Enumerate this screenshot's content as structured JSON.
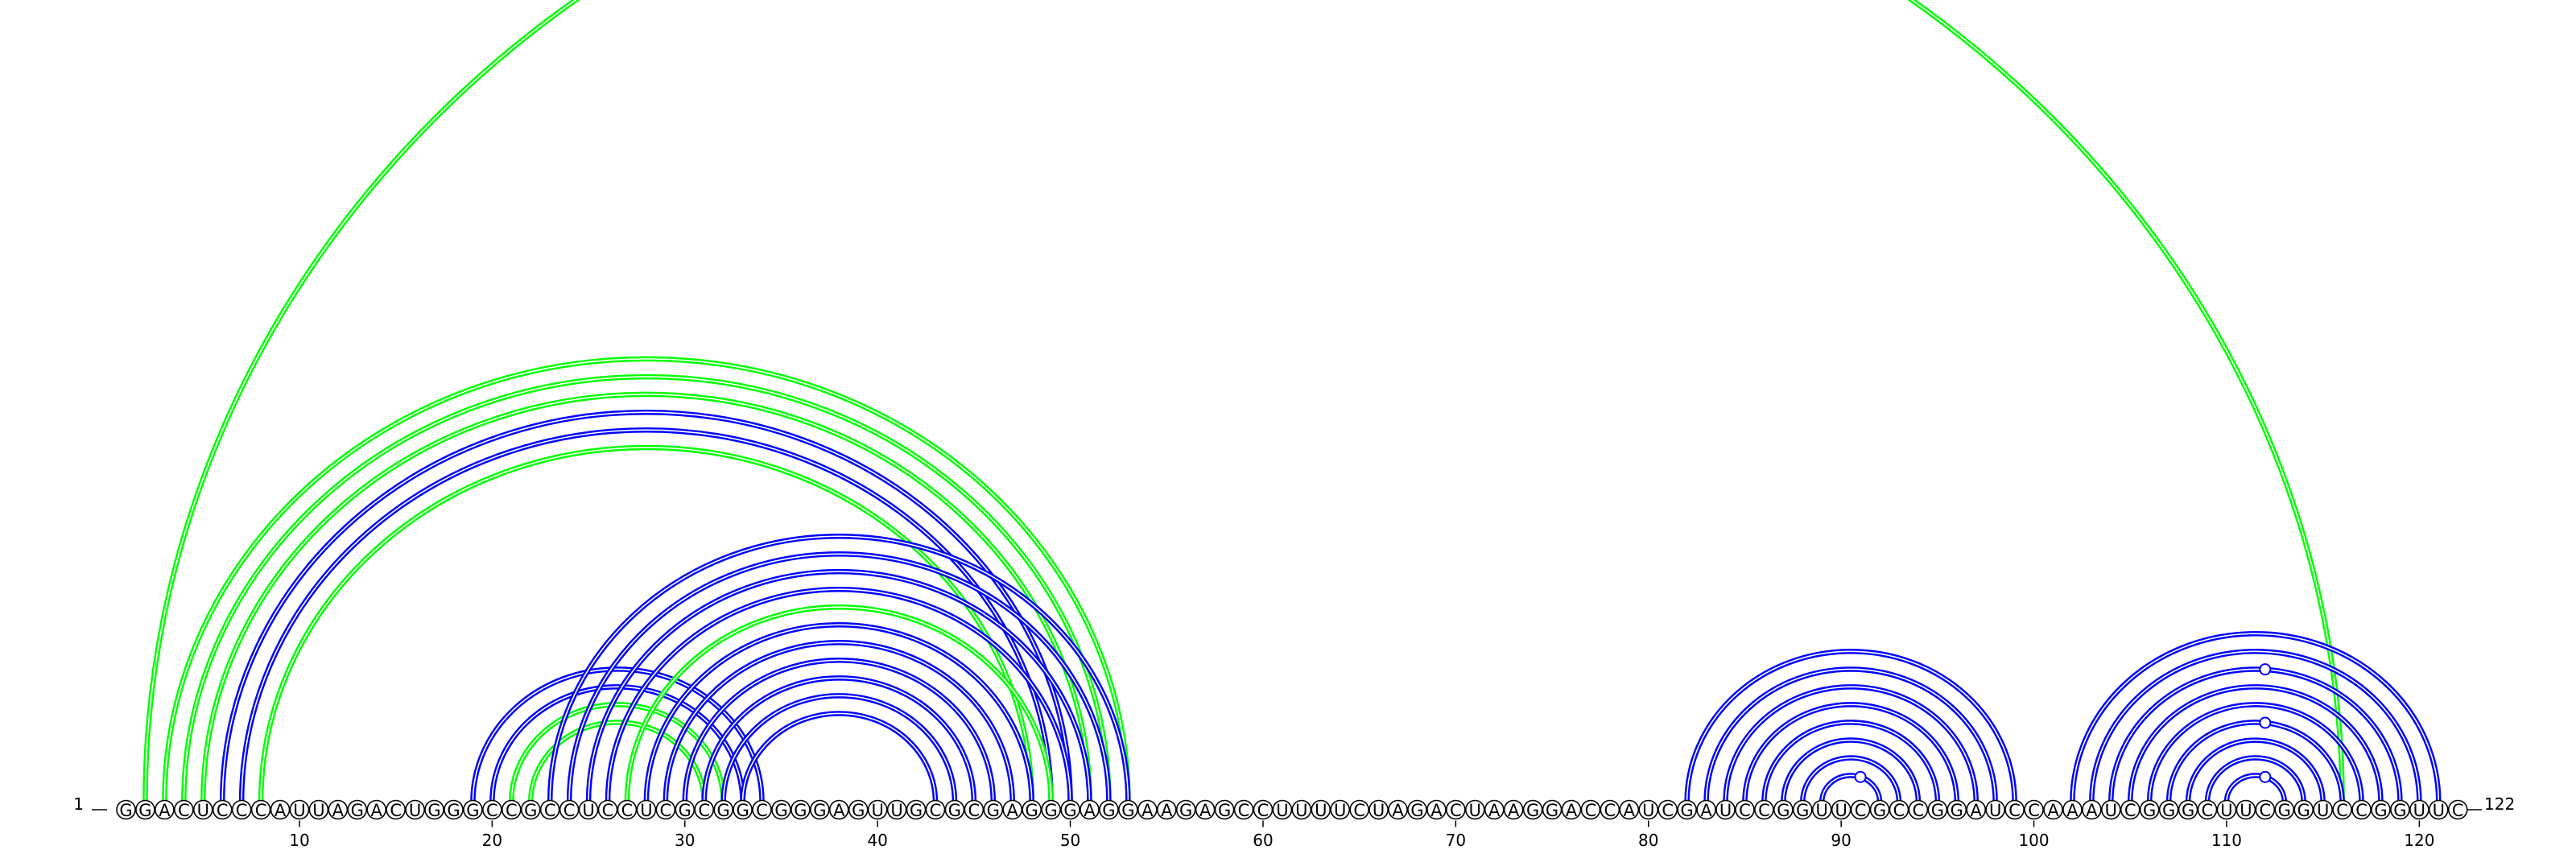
{
  "sequence": "GGACUCCCAUUAGACUGGGCCGCCUCCUCGCGGCGGGAGUUGCGCGAGGGAGGAAGAGCCUUUUCUAGACUAAGGACCAUCGAUCCGGUUCGCCGGAUCCAAAUCGGGCUUCGGUCCGGUUC",
  "start_label": "1",
  "end_label": "122",
  "ticks": [
    10,
    20,
    30,
    40,
    50,
    60,
    70,
    80,
    90,
    100,
    110,
    120
  ],
  "colors": {
    "blue": "#0000ff",
    "green": "#00ff00"
  },
  "pairs": [
    {
      "i": 2,
      "j": 116,
      "color": "green"
    },
    {
      "i": 3,
      "j": 53,
      "color": "green"
    },
    {
      "i": 4,
      "j": 52,
      "color": "green"
    },
    {
      "i": 5,
      "j": 51,
      "color": "green"
    },
    {
      "i": 6,
      "j": 50,
      "color": "blue"
    },
    {
      "i": 7,
      "j": 49,
      "color": "blue"
    },
    {
      "i": 8,
      "j": 48,
      "color": "green"
    },
    {
      "i": 19,
      "j": 34,
      "color": "blue"
    },
    {
      "i": 20,
      "j": 33,
      "color": "blue"
    },
    {
      "i": 21,
      "j": 32,
      "color": "green"
    },
    {
      "i": 22,
      "j": 31,
      "color": "green"
    },
    {
      "i": 23,
      "j": 53,
      "color": "blue"
    },
    {
      "i": 24,
      "j": 52,
      "color": "blue"
    },
    {
      "i": 25,
      "j": 51,
      "color": "blue"
    },
    {
      "i": 26,
      "j": 50,
      "color": "blue"
    },
    {
      "i": 27,
      "j": 49,
      "color": "green"
    },
    {
      "i": 28,
      "j": 48,
      "color": "blue"
    },
    {
      "i": 29,
      "j": 47,
      "color": "blue"
    },
    {
      "i": 30,
      "j": 46,
      "color": "blue"
    },
    {
      "i": 31,
      "j": 45,
      "color": "blue"
    },
    {
      "i": 32,
      "j": 44,
      "color": "blue"
    },
    {
      "i": 33,
      "j": 43,
      "color": "blue"
    },
    {
      "i": 82,
      "j": 99,
      "color": "blue"
    },
    {
      "i": 83,
      "j": 98,
      "color": "blue"
    },
    {
      "i": 84,
      "j": 97,
      "color": "blue"
    },
    {
      "i": 85,
      "j": 96,
      "color": "blue"
    },
    {
      "i": 86,
      "j": 95,
      "color": "blue"
    },
    {
      "i": 87,
      "j": 94,
      "color": "blue"
    },
    {
      "i": 88,
      "j": 93,
      "color": "blue"
    },
    {
      "i": 89,
      "j": 92,
      "color": "blue"
    },
    {
      "i": 102,
      "j": 121,
      "color": "blue"
    },
    {
      "i": 103,
      "j": 120,
      "color": "blue"
    },
    {
      "i": 104,
      "j": 119,
      "color": "blue"
    },
    {
      "i": 105,
      "j": 118,
      "color": "blue"
    },
    {
      "i": 106,
      "j": 117,
      "color": "blue"
    },
    {
      "i": 107,
      "j": 116,
      "color": "blue"
    },
    {
      "i": 108,
      "j": 115,
      "color": "blue"
    },
    {
      "i": 109,
      "j": 114,
      "color": "blue"
    },
    {
      "i": 110,
      "j": 113,
      "color": "blue"
    }
  ],
  "markers": [
    {
      "pos": 28,
      "color": "green",
      "filled": true
    },
    {
      "pos": 91,
      "color": "blue",
      "filled": false
    },
    {
      "pos": 112,
      "color": "blue",
      "filled": false
    },
    {
      "pos": 112,
      "color": "blue",
      "filled": false
    },
    {
      "pos": 112,
      "color": "blue",
      "filled": false
    }
  ]
}
